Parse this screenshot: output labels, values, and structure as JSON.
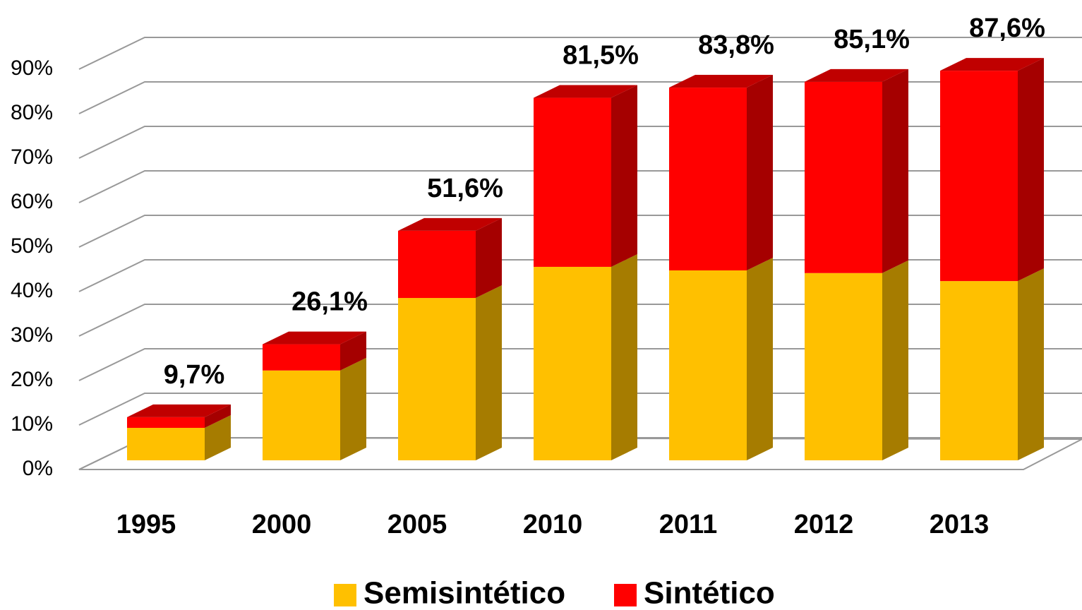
{
  "chart_data": {
    "type": "bar3d_stacked",
    "categories": [
      "1995",
      "2000",
      "2005",
      "2010",
      "2011",
      "2012",
      "2013"
    ],
    "series": [
      {
        "name": "Semisintético",
        "color": "#FFC000",
        "side_color": "#A67C00",
        "values": [
          7.3,
          20.2,
          36.5,
          43.5,
          42.7,
          42.1,
          40.3
        ]
      },
      {
        "name": "Sintético",
        "color": "#FF0000",
        "side_color": "#A50000",
        "values": [
          2.4,
          5.9,
          15.1,
          38.0,
          41.1,
          43.0,
          47.3
        ]
      }
    ],
    "totals": [
      9.7,
      26.1,
      51.6,
      81.5,
      83.8,
      85.1,
      87.6
    ],
    "total_labels": [
      "9,7%",
      "26,1%",
      "51,6%",
      "81,5%",
      "83,8%",
      "85,1%",
      "87,6%"
    ],
    "ylim": [
      0,
      90
    ],
    "yticks": [
      {
        "value": 0,
        "label": "0%"
      },
      {
        "value": 10,
        "label": "10%"
      },
      {
        "value": 20,
        "label": "20%"
      },
      {
        "value": 30,
        "label": "30%"
      },
      {
        "value": 40,
        "label": "40%"
      },
      {
        "value": 50,
        "label": "50%"
      },
      {
        "value": 60,
        "label": "60%"
      },
      {
        "value": 70,
        "label": "70%"
      },
      {
        "value": 80,
        "label": "80%"
      },
      {
        "value": 90,
        "label": "90%"
      }
    ],
    "grid": true
  }
}
